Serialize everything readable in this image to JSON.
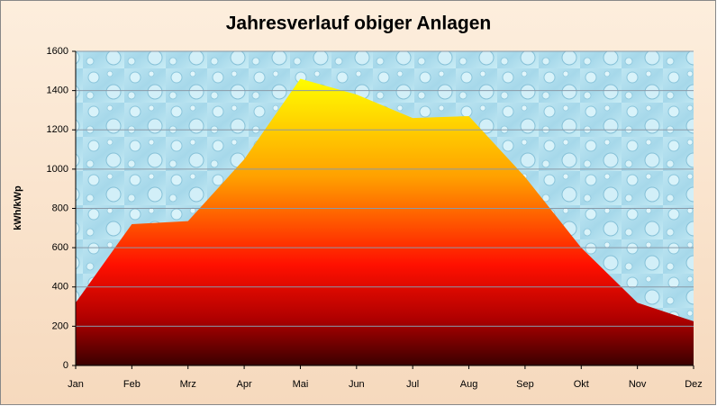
{
  "chart_data": {
    "type": "area",
    "title": "Jahresverlauf obiger Anlagen",
    "y_label": "kWh/kWp",
    "categories": [
      "Jan",
      "Feb",
      "Mrz",
      "Apr",
      "Mai",
      "Jun",
      "Jul",
      "Aug",
      "Sep",
      "Okt",
      "Nov",
      "Dez"
    ],
    "values": [
      320,
      720,
      735,
      1050,
      1460,
      1380,
      1260,
      1270,
      960,
      600,
      320,
      225
    ],
    "ylim": [
      0,
      1600
    ],
    "yticks": [
      0,
      200,
      400,
      600,
      800,
      1000,
      1200,
      1400,
      1600
    ],
    "grid": true
  }
}
